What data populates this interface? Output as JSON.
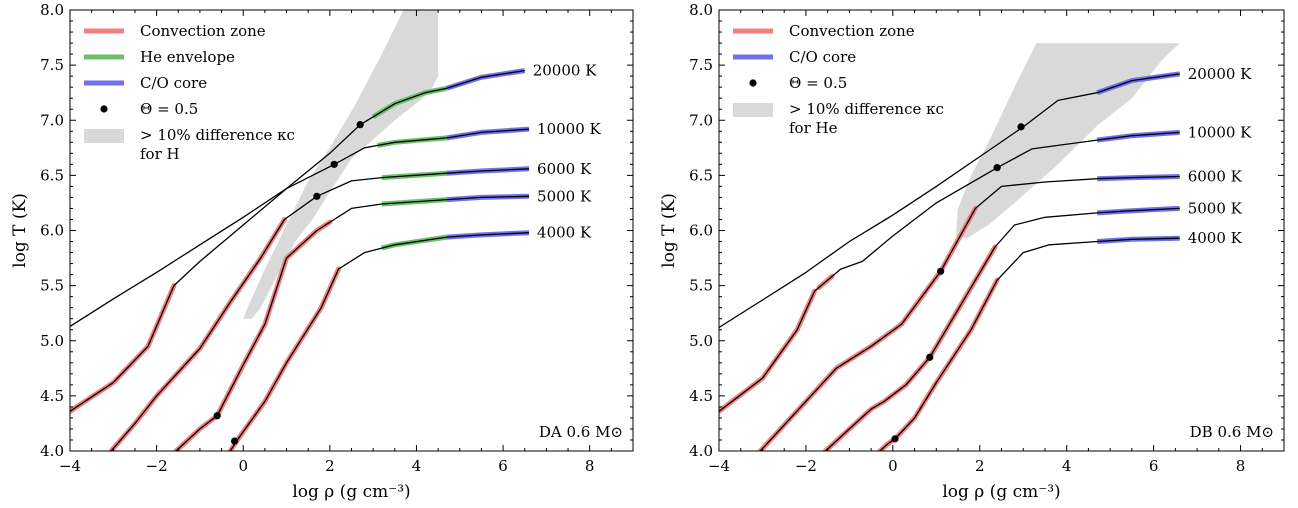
{
  "chart_data": [
    {
      "type": "line",
      "panel_label": "DA 0.6 M⊙",
      "xlabel": "log ρ (g cm⁻³)",
      "ylabel": "log T (K)",
      "xlim": [
        -4,
        9
      ],
      "ylim": [
        4.0,
        8.0
      ],
      "xticks": [
        "−4",
        "−2",
        "0",
        "2",
        "4",
        "6",
        "8"
      ],
      "yticks": [
        "4.0",
        "4.5",
        "5.0",
        "5.5",
        "6.0",
        "6.5",
        "7.0",
        "7.5",
        "8.0"
      ],
      "grid": false,
      "legend_placement": "top-left",
      "legend": [
        {
          "label": "Convection zone",
          "kind": "line",
          "color": "#f08080"
        },
        {
          "label": "He envelope",
          "kind": "line",
          "color": "#6cbf6c"
        },
        {
          "label": "C/O core",
          "kind": "line",
          "color": "#7070f0"
        },
        {
          "label": "Θ = 0.5",
          "kind": "dot",
          "color": "#000000"
        },
        {
          "label": "> 10% difference κc",
          "label2": "for H",
          "kind": "patch",
          "color": "#d9d9d9"
        }
      ],
      "shaded_region": [
        [
          0,
          5.2
        ],
        [
          0.1,
          5.3
        ],
        [
          0.5,
          5.65
        ],
        [
          1.0,
          6.05
        ],
        [
          1.5,
          6.45
        ],
        [
          2.0,
          6.75
        ],
        [
          2.6,
          7.15
        ],
        [
          3.2,
          7.6
        ],
        [
          3.7,
          8.0
        ],
        [
          4.5,
          8.0
        ],
        [
          4.5,
          7.4
        ],
        [
          4.3,
          7.25
        ],
        [
          3.5,
          7.0
        ],
        [
          2.5,
          6.65
        ],
        [
          2.0,
          6.35
        ],
        [
          1.6,
          6.1
        ],
        [
          1.2,
          5.9
        ],
        [
          0.8,
          5.6
        ],
        [
          0.4,
          5.3
        ],
        [
          0.2,
          5.2
        ]
      ],
      "series": [
        {
          "name": "20000 K",
          "points": [
            [
              -4,
              5.13
            ],
            [
              -3,
              5.38
            ],
            [
              -2,
              5.62
            ],
            [
              -1,
              5.87
            ],
            [
              0,
              6.12
            ],
            [
              1,
              6.38
            ],
            [
              2,
              6.7
            ],
            [
              2.7,
              6.96
            ],
            [
              3.5,
              7.15
            ],
            [
              4.2,
              7.25
            ],
            [
              4.7,
              7.29
            ],
            [
              5.5,
              7.39
            ],
            [
              6.5,
              7.45
            ]
          ],
          "convection": [],
          "he": [
            [
              3.0,
              4.7
            ]
          ],
          "core": [
            [
              4.7,
              6.6
            ]
          ],
          "theta_dots": [
            [
              2.7,
              6.96
            ]
          ]
        },
        {
          "name": "10000 K",
          "points": [
            [
              -4,
              4.36
            ],
            [
              -3.0,
              4.62
            ],
            [
              -2.2,
              4.95
            ],
            [
              -1.6,
              5.5
            ],
            [
              -1.0,
              5.72
            ],
            [
              0,
              6.05
            ],
            [
              1,
              6.38
            ],
            [
              2.1,
              6.6
            ],
            [
              2.8,
              6.75
            ],
            [
              3.5,
              6.8
            ],
            [
              4.7,
              6.84
            ],
            [
              5.5,
              6.89
            ],
            [
              6.6,
              6.92
            ]
          ],
          "convection": [
            [
              -4,
              -1.6
            ]
          ],
          "he": [
            [
              3.1,
              4.7
            ]
          ],
          "core": [
            [
              4.7,
              6.6
            ]
          ],
          "theta_dots": [
            [
              2.1,
              6.6
            ]
          ]
        },
        {
          "name": "6000 K",
          "points": [
            [
              -3.05,
              4.0
            ],
            [
              -2.5,
              4.25
            ],
            [
              -2.0,
              4.5
            ],
            [
              -1.0,
              4.93
            ],
            [
              -0.3,
              5.35
            ],
            [
              0.4,
              5.75
            ],
            [
              0.95,
              6.1
            ],
            [
              1.7,
              6.31
            ],
            [
              2.5,
              6.45
            ],
            [
              3.2,
              6.48
            ],
            [
              4.7,
              6.52
            ],
            [
              5.5,
              6.54
            ],
            [
              6.6,
              6.56
            ]
          ],
          "convection": [
            [
              -3.05,
              0.95
            ]
          ],
          "he": [
            [
              3.2,
              4.7
            ]
          ],
          "core": [
            [
              4.7,
              6.6
            ]
          ],
          "theta_dots": [
            [
              1.7,
              6.31
            ]
          ]
        },
        {
          "name": "5000 K",
          "points": [
            [
              -1.55,
              4.0
            ],
            [
              -1.0,
              4.2
            ],
            [
              -0.6,
              4.32
            ],
            [
              0,
              4.78
            ],
            [
              0.5,
              5.15
            ],
            [
              1.0,
              5.75
            ],
            [
              1.7,
              6.0
            ],
            [
              2.5,
              6.2
            ],
            [
              3.2,
              6.24
            ],
            [
              4.7,
              6.28
            ],
            [
              5.5,
              6.3
            ],
            [
              6.6,
              6.31
            ]
          ],
          "convection": [
            [
              -1.55,
              2.0
            ]
          ],
          "he": [
            [
              3.2,
              4.7
            ]
          ],
          "core": [
            [
              4.7,
              6.6
            ]
          ],
          "theta_dots": [
            [
              -0.6,
              4.32
            ]
          ]
        },
        {
          "name": "4000 K",
          "points": [
            [
              -0.3,
              4.0
            ],
            [
              -0.1,
              4.12
            ],
            [
              0.5,
              4.45
            ],
            [
              1.0,
              4.8
            ],
            [
              1.8,
              5.3
            ],
            [
              2.2,
              5.65
            ],
            [
              2.8,
              5.8
            ],
            [
              3.5,
              5.87
            ],
            [
              4.7,
              5.94
            ],
            [
              5.5,
              5.96
            ],
            [
              6.6,
              5.98
            ]
          ],
          "convection": [
            [
              -0.3,
              2.2
            ]
          ],
          "he": [
            [
              3.2,
              4.7
            ]
          ],
          "core": [
            [
              4.7,
              6.6
            ]
          ],
          "theta_dots": [
            [
              -0.2,
              4.09
            ]
          ]
        }
      ]
    },
    {
      "type": "line",
      "panel_label": "DB 0.6 M⊙",
      "xlabel": "log ρ (g cm⁻³)",
      "ylabel": "log T (K)",
      "xlim": [
        -4,
        9
      ],
      "ylim": [
        4.0,
        8.0
      ],
      "xticks": [
        "−4",
        "−2",
        "0",
        "2",
        "4",
        "6",
        "8"
      ],
      "yticks": [
        "4.0",
        "4.5",
        "5.0",
        "5.5",
        "6.0",
        "6.5",
        "7.0",
        "7.5",
        "8.0"
      ],
      "grid": false,
      "legend_placement": "top-left",
      "legend": [
        {
          "label": "Convection zone",
          "kind": "line",
          "color": "#f08080"
        },
        {
          "label": "C/O core",
          "kind": "line",
          "color": "#7070f0"
        },
        {
          "label": "Θ = 0.5",
          "kind": "dot",
          "color": "#000000"
        },
        {
          "label": "> 10% difference κc",
          "label2": "for He",
          "kind": "patch",
          "color": "#d9d9d9"
        }
      ],
      "shaded_region": [
        [
          1.45,
          5.95
        ],
        [
          1.5,
          6.2
        ],
        [
          1.8,
          6.5
        ],
        [
          2.2,
          6.8
        ],
        [
          2.8,
          7.3
        ],
        [
          3.3,
          7.7
        ],
        [
          6.6,
          7.7
        ],
        [
          6.2,
          7.55
        ],
        [
          5.5,
          7.2
        ],
        [
          4.7,
          6.95
        ],
        [
          3.8,
          6.6
        ],
        [
          2.8,
          6.25
        ],
        [
          2.2,
          6.05
        ],
        [
          1.7,
          5.93
        ]
      ],
      "series": [
        {
          "name": "20000 K",
          "points": [
            [
              -4,
              5.12
            ],
            [
              -3,
              5.37
            ],
            [
              -2,
              5.62
            ],
            [
              -1,
              5.9
            ],
            [
              0,
              6.14
            ],
            [
              1,
              6.4
            ],
            [
              2,
              6.67
            ],
            [
              3.0,
              6.94
            ],
            [
              3.8,
              7.18
            ],
            [
              4.7,
              7.25
            ],
            [
              5.5,
              7.36
            ],
            [
              6.6,
              7.42
            ]
          ],
          "convection": [],
          "he": [],
          "core": [
            [
              4.7,
              6.6
            ]
          ],
          "theta_dots": [
            [
              2.95,
              6.94
            ]
          ]
        },
        {
          "name": "10000 K",
          "points": [
            [
              -4,
              4.36
            ],
            [
              -3.0,
              4.66
            ],
            [
              -2.2,
              5.1
            ],
            [
              -1.8,
              5.45
            ],
            [
              -1.2,
              5.65
            ],
            [
              -0.7,
              5.72
            ],
            [
              0,
              5.95
            ],
            [
              1,
              6.25
            ],
            [
              2.4,
              6.57
            ],
            [
              3.2,
              6.74
            ],
            [
              4.7,
              6.82
            ],
            [
              5.5,
              6.86
            ],
            [
              6.6,
              6.89
            ]
          ],
          "convection": [
            [
              -4,
              -1.8
            ],
            [
              -1.7,
              -1.4
            ]
          ],
          "he": [],
          "core": [
            [
              4.7,
              6.6
            ]
          ],
          "theta_dots": [
            [
              2.4,
              6.57
            ]
          ]
        },
        {
          "name": "6000 K",
          "points": [
            [
              -3.05,
              4.0
            ],
            [
              -2.0,
              4.45
            ],
            [
              -1.3,
              4.75
            ],
            [
              -0.9,
              4.85
            ],
            [
              -0.5,
              4.95
            ],
            [
              0.2,
              5.15
            ],
            [
              1.1,
              5.63
            ],
            [
              1.9,
              6.2
            ],
            [
              2.5,
              6.4
            ],
            [
              3.5,
              6.44
            ],
            [
              4.7,
              6.47
            ],
            [
              5.5,
              6.48
            ],
            [
              6.6,
              6.49
            ]
          ],
          "convection": [
            [
              -3.05,
              1.9
            ]
          ],
          "he": [],
          "core": [
            [
              4.7,
              6.6
            ]
          ],
          "theta_dots": [
            [
              1.1,
              5.63
            ]
          ]
        },
        {
          "name": "5000 K",
          "points": [
            [
              -1.55,
              4.0
            ],
            [
              -1.0,
              4.2
            ],
            [
              -0.5,
              4.38
            ],
            [
              -0.2,
              4.45
            ],
            [
              0.3,
              4.6
            ],
            [
              0.85,
              4.85
            ],
            [
              1.6,
              5.35
            ],
            [
              2.35,
              5.85
            ],
            [
              2.8,
              6.05
            ],
            [
              3.5,
              6.12
            ],
            [
              4.7,
              6.16
            ],
            [
              5.5,
              6.18
            ],
            [
              6.6,
              6.2
            ]
          ],
          "convection": [
            [
              -1.55,
              2.35
            ]
          ],
          "he": [],
          "core": [
            [
              4.7,
              6.6
            ]
          ],
          "theta_dots": [
            [
              0.85,
              4.85
            ]
          ]
        },
        {
          "name": "4000 K",
          "points": [
            [
              -0.3,
              4.0
            ],
            [
              -0.1,
              4.07
            ],
            [
              0.05,
              4.11
            ],
            [
              0.5,
              4.3
            ],
            [
              1.0,
              4.62
            ],
            [
              1.8,
              5.1
            ],
            [
              2.4,
              5.55
            ],
            [
              3.0,
              5.8
            ],
            [
              3.6,
              5.87
            ],
            [
              4.7,
              5.9
            ],
            [
              5.5,
              5.92
            ],
            [
              6.6,
              5.93
            ]
          ],
          "convection": [
            [
              -0.3,
              2.4
            ]
          ],
          "he": [],
          "core": [
            [
              4.7,
              6.6
            ]
          ],
          "theta_dots": [
            [
              0.05,
              4.11
            ]
          ]
        }
      ]
    }
  ]
}
